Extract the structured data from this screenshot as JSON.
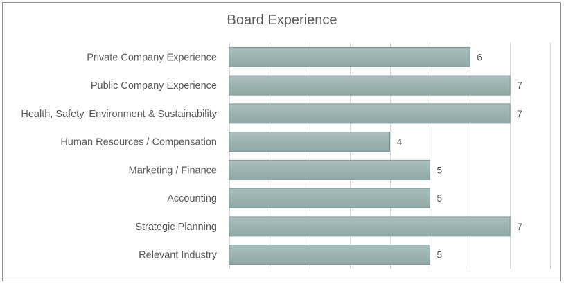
{
  "chart_data": {
    "type": "bar",
    "orientation": "horizontal",
    "title": "Board Experience",
    "xlabel": "",
    "ylabel": "",
    "categories": [
      "Private Company Experience",
      "Public Company Experience",
      "Health, Safety, Environment & Sustainability",
      "Human Resources / Compensation",
      "Marketing / Finance",
      "Accounting",
      "Strategic Planning",
      "Relevant Industry"
    ],
    "values": [
      6,
      7,
      7,
      4,
      5,
      5,
      7,
      5
    ],
    "xlim": [
      0,
      8
    ],
    "grid": true,
    "legend": "none",
    "data_labels": true,
    "colors": {
      "bar_top": "#a9bfbb",
      "bar_bottom": "#8fa9a5",
      "bar_border": "#7f9a96",
      "grid": "#d9d9d9",
      "text": "#595959",
      "frame": "#8c8c8c"
    }
  }
}
